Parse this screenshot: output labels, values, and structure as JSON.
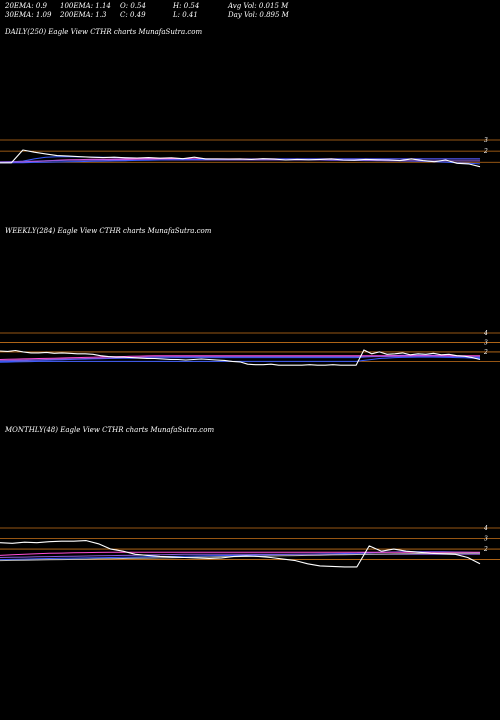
{
  "header": {
    "row1": [
      "20EMA: 0.9",
      "100EMA: 1.14",
      "O: 0.54",
      "H: 0.54",
      "Avg Vol: 0.015 M"
    ],
    "row2": [
      "30EMA: 1.09",
      "200EMA: 1.3",
      "C: 0.49",
      "L: 0.41",
      "Day Vol: 0.895 M"
    ]
  },
  "colors": {
    "background": "#000000",
    "level_line": "#c8731a",
    "price": "#ffffff",
    "ema_pink": "#ff4fd8",
    "ema_blue": "#3a5cff",
    "ema_purple": "#8a5bd8",
    "ema_gray": "#bbbbbb"
  },
  "chart_data": [
    {
      "type": "line",
      "title": "DAILY(250) Eagle   View  CTHR charts MunafaSutra.com",
      "y_ticks": [
        "3",
        "2"
      ],
      "levels": [
        3,
        2,
        1
      ],
      "series": [
        {
          "color": "#ffffff",
          "values": [
            0.95,
            0.95,
            2.1,
            1.9,
            1.75,
            1.6,
            1.55,
            1.5,
            1.45,
            1.42,
            1.45,
            1.4,
            1.38,
            1.42,
            1.36,
            1.4,
            1.32,
            1.45,
            1.3,
            1.3,
            1.28,
            1.3,
            1.25,
            1.32,
            1.28,
            1.2,
            1.25,
            1.22,
            1.25,
            1.3,
            1.2,
            1.18,
            1.25,
            1.22,
            1.2,
            1.15,
            1.3,
            1.15,
            1.05,
            1.2,
            0.9,
            0.85,
            0.6
          ]
        },
        {
          "color": "#3a5cff",
          "values": [
            1.0,
            1.05,
            1.1,
            1.3,
            1.45,
            1.5,
            1.5,
            1.48,
            1.46,
            1.44,
            1.42,
            1.4,
            1.38,
            1.36,
            1.35,
            1.34,
            1.32,
            1.3,
            1.3,
            1.28,
            1.27,
            1.26,
            1.25,
            1.24,
            1.24,
            1.22,
            1.2,
            1.2,
            1.2,
            1.18,
            1.17,
            1.16,
            1.15,
            1.15,
            1.14,
            1.12,
            1.1,
            1.08,
            1.05,
            1.0,
            0.95,
            0.9,
            0.85
          ]
        },
        {
          "color": "#ff4fd8",
          "values": [
            0.95,
            0.97,
            1.0,
            1.05,
            1.12,
            1.18,
            1.22,
            1.24,
            1.26,
            1.27,
            1.28,
            1.29,
            1.3,
            1.3,
            1.3,
            1.3,
            1.3,
            1.3,
            1.3,
            1.3,
            1.3,
            1.3,
            1.3,
            1.3,
            1.3,
            1.3,
            1.3,
            1.3,
            1.3,
            1.3,
            1.3,
            1.3,
            1.3,
            1.3,
            1.3,
            1.3,
            1.3,
            1.3,
            1.3,
            1.3,
            1.3,
            1.3,
            1.3
          ]
        },
        {
          "color": "#8a5bd8",
          "values": [
            1.05,
            1.06,
            1.07,
            1.1,
            1.13,
            1.15,
            1.17,
            1.18,
            1.19,
            1.2,
            1.2,
            1.2,
            1.2,
            1.2,
            1.2,
            1.2,
            1.2,
            1.2,
            1.2,
            1.2,
            1.2,
            1.2,
            1.2,
            1.2,
            1.2,
            1.2,
            1.2,
            1.2,
            1.2,
            1.19,
            1.18,
            1.17,
            1.16,
            1.15,
            1.14,
            1.13,
            1.13,
            1.12,
            1.12,
            1.12,
            1.12,
            1.12,
            1.12
          ]
        },
        {
          "color": "#3a5cff",
          "values": [
            0.95,
            0.95,
            0.96,
            0.98,
            1.0,
            1.02,
            1.04,
            1.06,
            1.08,
            1.1,
            1.12,
            1.14,
            1.16,
            1.18,
            1.2,
            1.22,
            1.23,
            1.24,
            1.25,
            1.26,
            1.27,
            1.28,
            1.29,
            1.3,
            1.3,
            1.3,
            1.3,
            1.3,
            1.3,
            1.3,
            1.3,
            1.3,
            1.3,
            1.3,
            1.3,
            1.3,
            1.3,
            1.3,
            1.3,
            1.3,
            1.3,
            1.3,
            1.3
          ]
        }
      ]
    },
    {
      "type": "line",
      "title": "WEEKLY(284) Eagle   View  CTHR charts MunafaSutra.com",
      "y_ticks": [
        "4",
        "3",
        "2"
      ],
      "levels": [
        4,
        3,
        2,
        1
      ],
      "series": [
        {
          "color": "#ffffff",
          "values": [
            2.1,
            2.05,
            2.15,
            2.0,
            1.9,
            1.9,
            1.95,
            1.85,
            1.9,
            1.85,
            1.8,
            1.8,
            1.75,
            1.6,
            1.5,
            1.45,
            1.45,
            1.4,
            1.35,
            1.3,
            1.3,
            1.25,
            1.2,
            1.2,
            1.15,
            1.2,
            1.25,
            1.2,
            1.15,
            1.1,
            1.0,
            0.95,
            0.7,
            0.65,
            0.65,
            0.7,
            0.6,
            0.6,
            0.6,
            0.6,
            0.65,
            0.6,
            0.6,
            0.65,
            0.6,
            0.6,
            0.6,
            2.2,
            1.8,
            2.0,
            1.75,
            1.8,
            1.9,
            1.7,
            1.8,
            1.75,
            1.85,
            1.7,
            1.75,
            1.6,
            1.55,
            1.4,
            1.2
          ]
        },
        {
          "color": "#3a5cff",
          "values": [
            1.0,
            1.02,
            1.05,
            1.08,
            1.1,
            1.12,
            1.14,
            1.16,
            1.18,
            1.2,
            1.22,
            1.24,
            1.26,
            1.28,
            1.3,
            1.32,
            1.33,
            1.34,
            1.35,
            1.36,
            1.37,
            1.38,
            1.39,
            1.4,
            1.4,
            1.4,
            1.4,
            1.4,
            1.4,
            1.4,
            1.4,
            1.4,
            1.4,
            1.4,
            1.4,
            1.4,
            1.4,
            1.4,
            1.4,
            1.4,
            1.4,
            1.4,
            1.4,
            1.4,
            1.4,
            1.4,
            1.4,
            1.45,
            1.5,
            1.55,
            1.6,
            1.62,
            1.64,
            1.65,
            1.65,
            1.65,
            1.65,
            1.62,
            1.6,
            1.55,
            1.5,
            1.45,
            1.4
          ]
        },
        {
          "color": "#ff4fd8",
          "values": [
            1.2,
            1.22,
            1.24,
            1.26,
            1.28,
            1.3,
            1.32,
            1.34,
            1.36,
            1.38,
            1.4,
            1.42,
            1.44,
            1.46,
            1.48,
            1.5,
            1.52,
            1.54,
            1.56,
            1.58,
            1.6,
            1.6,
            1.6,
            1.6,
            1.6,
            1.6,
            1.6,
            1.6,
            1.6,
            1.6,
            1.6,
            1.6,
            1.6,
            1.6,
            1.6,
            1.6,
            1.6,
            1.6,
            1.6,
            1.6,
            1.6,
            1.6,
            1.6,
            1.6,
            1.6,
            1.6,
            1.6,
            1.6,
            1.6,
            1.6,
            1.6,
            1.6,
            1.6,
            1.6,
            1.6,
            1.6,
            1.6,
            1.6,
            1.6,
            1.6,
            1.6,
            1.6,
            1.6
          ]
        },
        {
          "color": "#8a5bd8",
          "values": [
            1.1,
            1.1,
            1.12,
            1.14,
            1.16,
            1.18,
            1.2,
            1.22,
            1.24,
            1.26,
            1.28,
            1.3,
            1.32,
            1.34,
            1.36,
            1.38,
            1.4,
            1.42,
            1.44,
            1.46,
            1.48,
            1.5,
            1.5,
            1.5,
            1.5,
            1.5,
            1.5,
            1.5,
            1.5,
            1.5,
            1.5,
            1.5,
            1.5,
            1.5,
            1.5,
            1.5,
            1.5,
            1.5,
            1.5,
            1.5,
            1.5,
            1.5,
            1.5,
            1.5,
            1.5,
            1.5,
            1.5,
            1.5,
            1.5,
            1.5,
            1.5,
            1.5,
            1.5,
            1.5,
            1.5,
            1.5,
            1.5,
            1.5,
            1.5,
            1.5,
            1.5,
            1.5,
            1.5
          ]
        },
        {
          "color": "#3a5cff",
          "values": [
            0.9,
            0.92,
            0.94,
            0.96,
            0.98,
            1.0,
            1.0,
            1.0,
            1.0,
            1.0,
            1.0,
            1.0,
            1.0,
            1.0,
            1.0,
            1.0,
            1.0,
            1.0,
            1.0,
            1.0,
            1.0,
            1.0,
            1.0,
            1.0,
            1.0,
            1.0,
            1.0,
            1.0,
            1.0,
            1.0,
            1.0,
            1.0,
            1.0,
            1.0,
            1.0,
            1.0,
            1.0,
            1.0,
            1.0,
            1.0,
            1.0,
            1.0,
            1.0,
            1.0,
            1.0,
            1.0,
            1.0,
            1.1,
            1.2,
            1.3,
            1.35,
            1.4,
            1.42,
            1.44,
            1.45,
            1.45,
            1.45,
            1.44,
            1.42,
            1.4,
            1.38,
            1.35,
            1.3
          ]
        }
      ]
    },
    {
      "type": "line",
      "title": "MONTHLY(48) Eagle   View  CTHR charts MunafaSutra.com",
      "y_ticks": [
        "4",
        "3",
        "2"
      ],
      "levels": [
        4,
        3,
        2,
        1
      ],
      "series": [
        {
          "color": "#ffffff",
          "values": [
            2.6,
            2.55,
            2.65,
            2.6,
            2.7,
            2.75,
            2.75,
            2.8,
            2.5,
            2.0,
            1.8,
            1.5,
            1.4,
            1.3,
            1.25,
            1.2,
            1.15,
            1.1,
            1.15,
            1.3,
            1.35,
            1.3,
            1.2,
            1.05,
            0.9,
            0.6,
            0.4,
            0.35,
            0.3,
            0.3,
            2.3,
            1.8,
            2.0,
            1.8,
            1.7,
            1.6,
            1.55,
            1.5,
            1.2,
            0.6
          ]
        },
        {
          "color": "#3a5cff",
          "values": [
            1.0,
            1.02,
            1.05,
            1.08,
            1.1,
            1.12,
            1.14,
            1.16,
            1.18,
            1.2,
            1.22,
            1.24,
            1.26,
            1.28,
            1.3,
            1.32,
            1.34,
            1.36,
            1.38,
            1.4,
            1.42,
            1.44,
            1.46,
            1.48,
            1.5,
            1.52,
            1.54,
            1.56,
            1.58,
            1.6,
            1.65,
            1.7,
            1.72,
            1.74,
            1.75,
            1.75,
            1.75,
            1.72,
            1.7,
            1.65
          ]
        },
        {
          "color": "#ff4fd8",
          "values": [
            1.4,
            1.45,
            1.5,
            1.55,
            1.6,
            1.62,
            1.64,
            1.66,
            1.68,
            1.7,
            1.7,
            1.7,
            1.7,
            1.7,
            1.7,
            1.7,
            1.7,
            1.7,
            1.7,
            1.7,
            1.7,
            1.7,
            1.7,
            1.7,
            1.7,
            1.7,
            1.7,
            1.7,
            1.7,
            1.7,
            1.7,
            1.7,
            1.7,
            1.7,
            1.7,
            1.7,
            1.7,
            1.7,
            1.7,
            1.7
          ]
        },
        {
          "color": "#8a5bd8",
          "values": [
            1.2,
            1.22,
            1.24,
            1.26,
            1.28,
            1.3,
            1.32,
            1.34,
            1.36,
            1.38,
            1.4,
            1.42,
            1.44,
            1.46,
            1.48,
            1.5,
            1.5,
            1.5,
            1.5,
            1.5,
            1.5,
            1.5,
            1.5,
            1.5,
            1.5,
            1.5,
            1.5,
            1.5,
            1.5,
            1.5,
            1.5,
            1.5,
            1.5,
            1.5,
            1.5,
            1.5,
            1.5,
            1.5,
            1.5,
            1.5
          ]
        },
        {
          "color": "#bbbbbb",
          "values": [
            0.9,
            0.92,
            0.94,
            0.96,
            0.98,
            1.0,
            1.02,
            1.04,
            1.06,
            1.08,
            1.1,
            1.12,
            1.14,
            1.16,
            1.18,
            1.2,
            1.22,
            1.24,
            1.26,
            1.28,
            1.3,
            1.32,
            1.34,
            1.36,
            1.38,
            1.4,
            1.42,
            1.44,
            1.46,
            1.48,
            1.5,
            1.52,
            1.54,
            1.56,
            1.58,
            1.6,
            1.6,
            1.6,
            1.6,
            1.6
          ]
        }
      ]
    }
  ]
}
